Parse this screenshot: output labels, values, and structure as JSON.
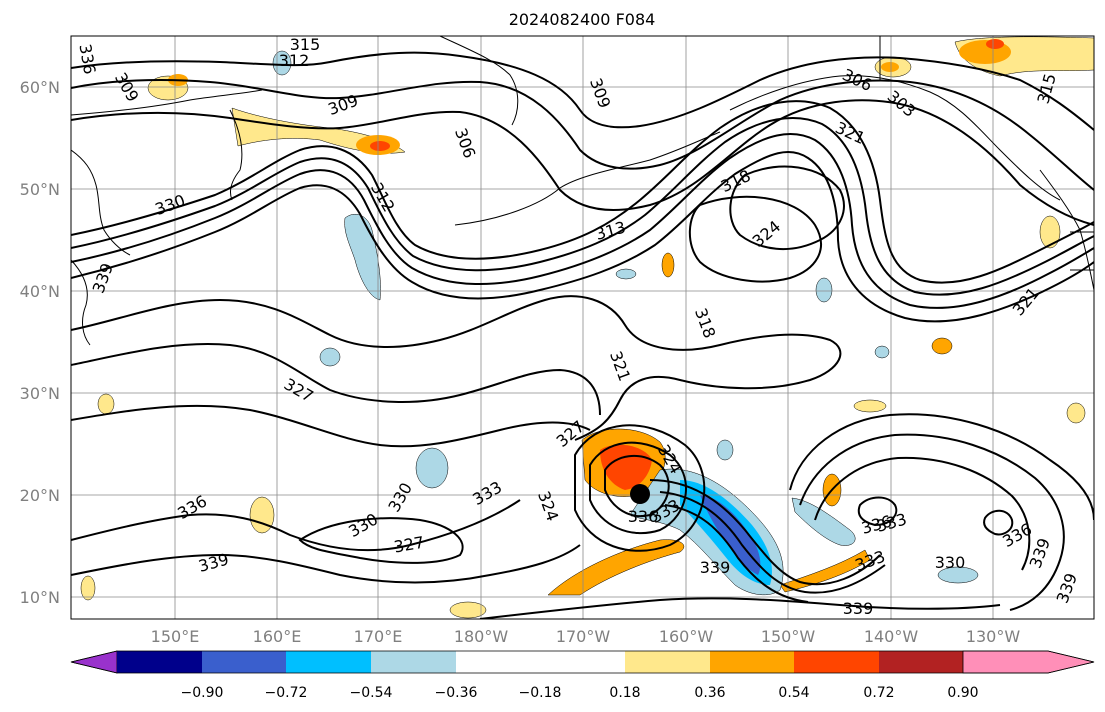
{
  "title": "2024082400 F084",
  "lat_labels": [
    "60°N",
    "50°N",
    "40°N",
    "30°N",
    "20°N",
    "10°N"
  ],
  "lon_labels": [
    "150°E",
    "160°E",
    "170°E",
    "180°W",
    "170°W",
    "160°W",
    "150°W",
    "140°W",
    "130°W"
  ],
  "contour_labels": [
    "315",
    "312",
    "309",
    "309",
    "306",
    "309",
    "306",
    "303",
    "315",
    "321",
    "318",
    "324",
    "313",
    "330",
    "312",
    "339",
    "318",
    "321",
    "321",
    "327",
    "327",
    "324",
    "336",
    "330",
    "333",
    "324",
    "336",
    "333",
    "339",
    "330",
    "327",
    "339",
    "336",
    "333",
    "339",
    "330",
    "336",
    "339",
    "339",
    "333",
    "336"
  ],
  "colorbar": {
    "ticks": [
      "−0.90",
      "−0.72",
      "−0.54",
      "−0.36",
      "−0.18",
      "0.18",
      "0.36",
      "0.54",
      "0.72",
      "0.90"
    ],
    "colors": [
      "#9932cc",
      "#00008b",
      "#3a5fcd",
      "#00bfff",
      "#add8e6",
      "#ffffff",
      "#ffe88c",
      "#ffa500",
      "#ff4500",
      "#b22222",
      "#ff8fb8"
    ]
  },
  "colors": {
    "positive_light": "#ffe88c",
    "positive_mid": "#ffa500",
    "positive_strong": "#ff4500",
    "negative_light": "#add8e6",
    "negative_mid": "#00bfff",
    "negative_strong": "#3a5fcd",
    "contour": "#000000",
    "gridline": "#8a8a8a"
  }
}
